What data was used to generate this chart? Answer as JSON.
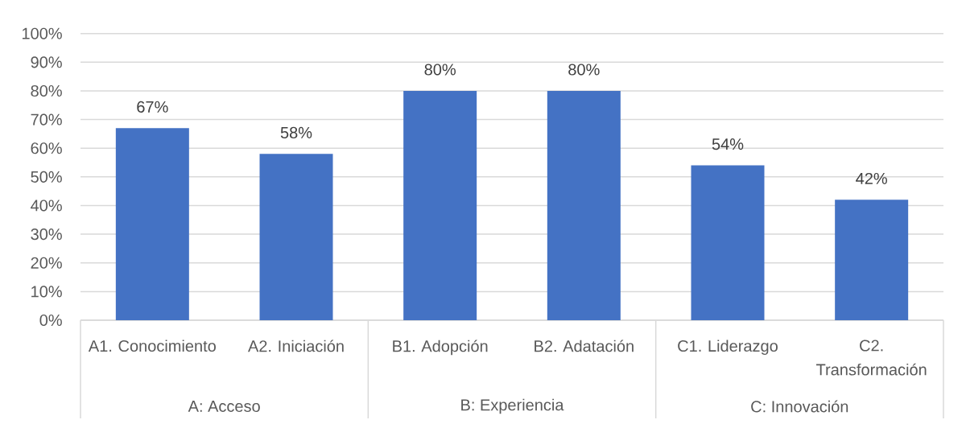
{
  "chart_data": {
    "type": "bar",
    "categories": [
      "A1. Conocimiento",
      "A2. Iniciación",
      "B1. Adopción",
      "B2. Adatación",
      "C1. Liderazgo",
      "C2. Transformación"
    ],
    "values": [
      67,
      58,
      80,
      80,
      54,
      42
    ],
    "color": "#4472c4",
    "value_labels": [
      "67%",
      "58%",
      "80%",
      "80%",
      "54%",
      "42%"
    ],
    "ylim": [
      0,
      100
    ],
    "yticks": [
      {
        "value": 0,
        "label": "0%"
      },
      {
        "value": 10,
        "label": "10%"
      },
      {
        "value": 20,
        "label": "20%"
      },
      {
        "value": 30,
        "label": "30%"
      },
      {
        "value": 40,
        "label": "40%"
      },
      {
        "value": 50,
        "label": "50%"
      },
      {
        "value": 60,
        "label": "60%"
      },
      {
        "value": 70,
        "label": "70%"
      },
      {
        "value": 80,
        "label": "80%"
      },
      {
        "value": 90,
        "label": "90%"
      },
      {
        "value": 100,
        "label": "100%"
      }
    ],
    "grid": "y",
    "annotations": [
      "A: Acceso",
      "B: Experiencia",
      "C: Innovación"
    ]
  }
}
